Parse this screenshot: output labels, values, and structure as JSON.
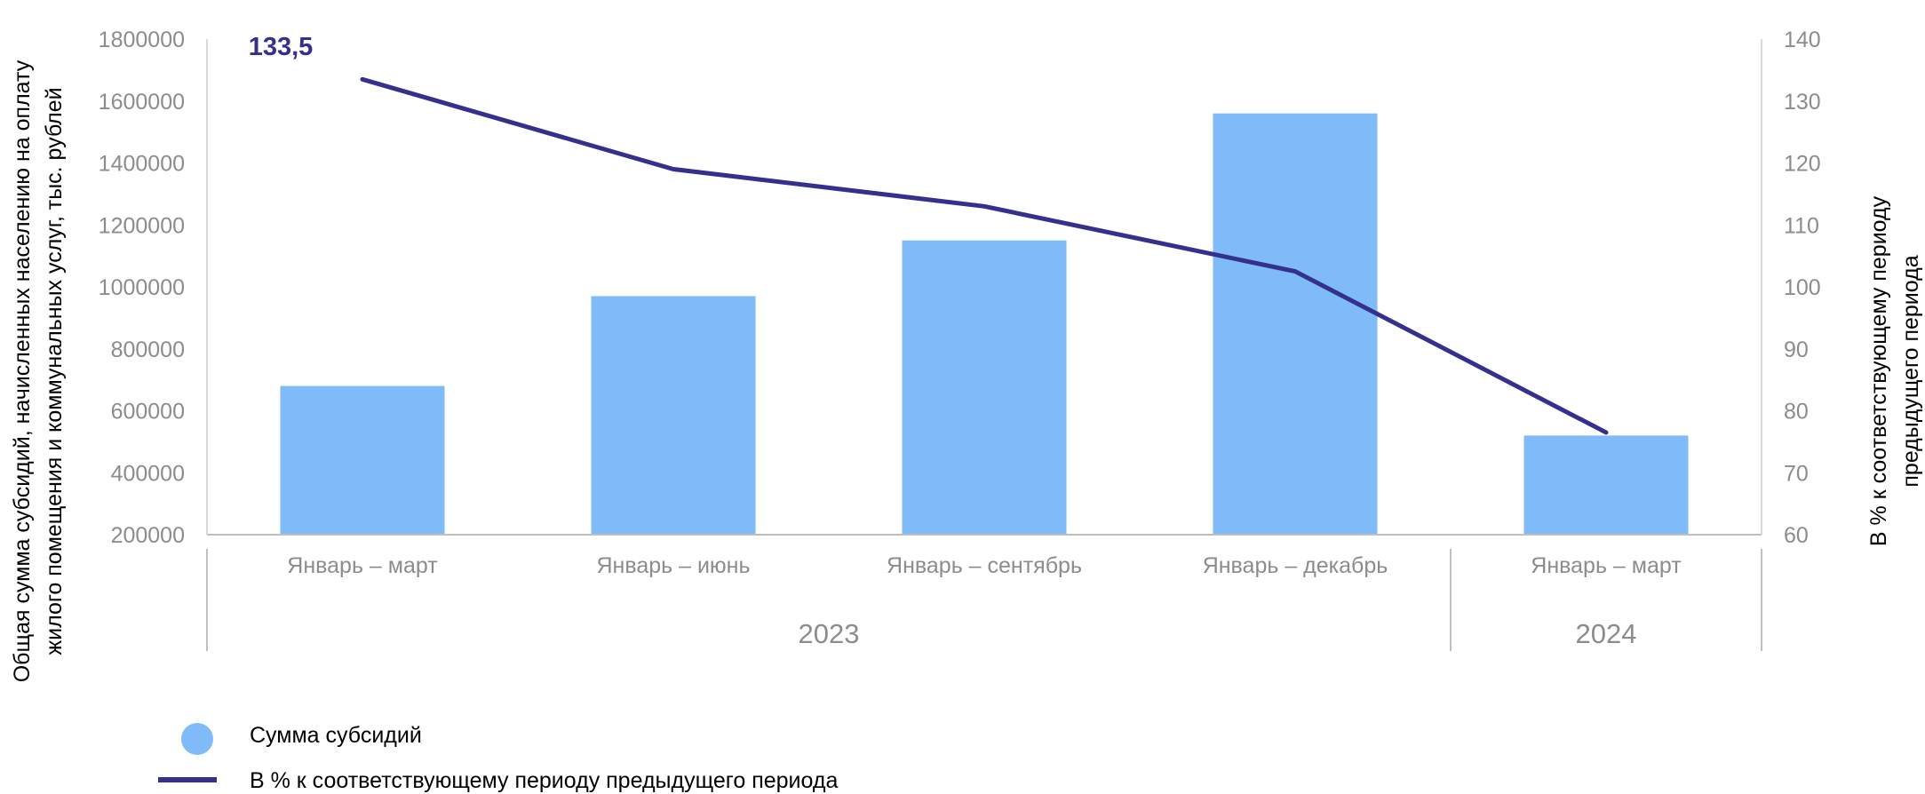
{
  "chart_data": {
    "type": "bar",
    "categories": [
      "Январь – март",
      "Январь – июнь",
      "Январь – сентябрь",
      "Январь – декабрь",
      "Январь – март"
    ],
    "groups": [
      {
        "label": "2023",
        "start": 0,
        "end": 3
      },
      {
        "label": "2024",
        "start": 4,
        "end": 4
      }
    ],
    "series": [
      {
        "name": "Сумма субсидий",
        "kind": "bar",
        "axis": "left",
        "values": [
          680000,
          970000,
          1150000,
          1560000,
          520000
        ],
        "color": "#7fbaf9"
      },
      {
        "name": "В % к соответствующему периоду предыдущего периода",
        "kind": "line",
        "axis": "right",
        "values": [
          133.5,
          119.0,
          113.0,
          102.5,
          76.5
        ],
        "color": "#35308e"
      }
    ],
    "data_labels": [
      {
        "series": 1,
        "index": 0,
        "text": "133,5"
      }
    ],
    "ylabel_left_lines": [
      "Общая сумма субсидий, начисленных населению на оплату",
      "жилого помещения и коммунальных услуг, тыс. рублей"
    ],
    "ylabel_right_lines": [
      "В % к соответствующему периоду",
      "предыдущего периода"
    ],
    "ylim_left": [
      200000,
      1800000
    ],
    "yticks_left": [
      "200000",
      "400000",
      "600000",
      "800000",
      "1000000",
      "1200000",
      "1400000",
      "1600000",
      "1800000"
    ],
    "ylim_right": [
      60,
      140
    ],
    "yticks_right": [
      "60",
      "70",
      "80",
      "90",
      "100",
      "110",
      "120",
      "130",
      "140"
    ],
    "grid": false,
    "legend_position": "bottom-left",
    "legend": [
      "Сумма субсидий",
      "В % к соответствующему периоду предыдущего периода"
    ]
  }
}
